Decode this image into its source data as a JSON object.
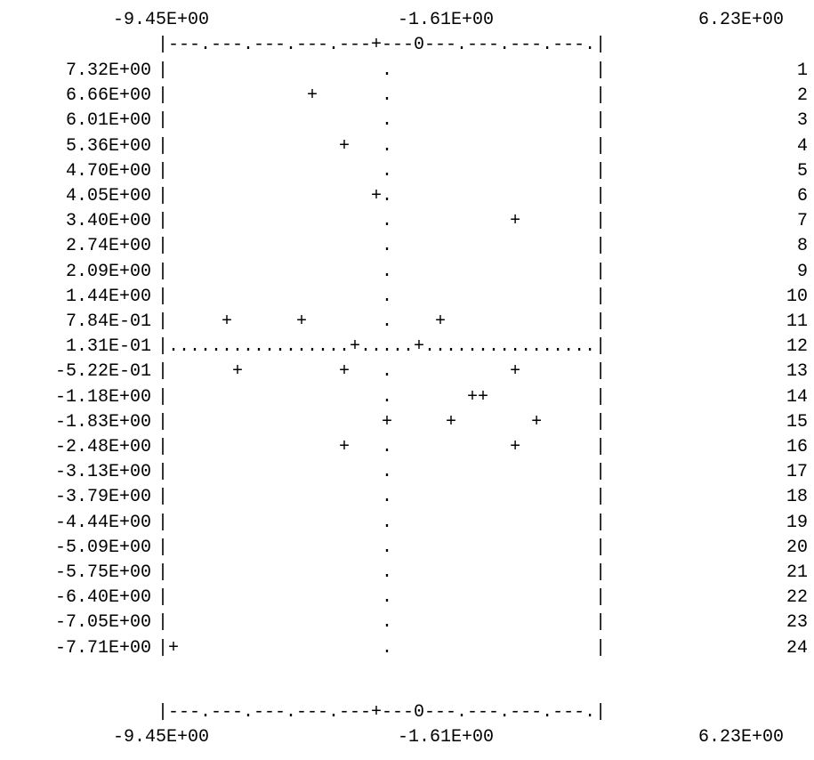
{
  "chart_data": {
    "type": "scatter",
    "style": "ascii line-printer plot",
    "title": "",
    "xlabel": "",
    "ylabel": "",
    "x_tick_labels": [
      "-9.45E+00",
      "-1.61E+00",
      "6.23E+00"
    ],
    "xlim": [
      -9.45,
      6.23
    ],
    "x_zero_marker": "0",
    "border_top": "|---.---.---.---.---+---0---.---.---.---.|",
    "border_bottom": "|---.---.---.---.---+---0---.---.---.---.|",
    "rows": [
      {
        "num": "1",
        "label": "7.32E+00",
        "plot": "|                    .                   |"
      },
      {
        "num": "2",
        "label": "6.66E+00",
        "plot": "|             +      .                   |"
      },
      {
        "num": "3",
        "label": "6.01E+00",
        "plot": "|                    .                   |"
      },
      {
        "num": "4",
        "label": "5.36E+00",
        "plot": "|                +   .                   |"
      },
      {
        "num": "5",
        "label": "4.70E+00",
        "plot": "|                    .                   |"
      },
      {
        "num": "6",
        "label": "4.05E+00",
        "plot": "|                   +.                   |"
      },
      {
        "num": "7",
        "label": "3.40E+00",
        "plot": "|                    .           +       |"
      },
      {
        "num": "8",
        "label": "2.74E+00",
        "plot": "|                    .                   |"
      },
      {
        "num": "9",
        "label": "2.09E+00",
        "plot": "|                    .                   |"
      },
      {
        "num": "10",
        "label": "1.44E+00",
        "plot": "|                    .                   |"
      },
      {
        "num": "11",
        "label": "7.84E-01",
        "plot": "|     +      +       .    +              |"
      },
      {
        "num": "12",
        "label": "1.31E-01",
        "plot": "|.................+.....+................|"
      },
      {
        "num": "13",
        "label": "-5.22E-01",
        "plot": "|      +         +   .           +       |"
      },
      {
        "num": "14",
        "label": "-1.18E+00",
        "plot": "|                    .       ++          |"
      },
      {
        "num": "15",
        "label": "-1.83E+00",
        "plot": "|                    +     +       +     |"
      },
      {
        "num": "16",
        "label": "-2.48E+00",
        "plot": "|                +   .           +       |"
      },
      {
        "num": "17",
        "label": "-3.13E+00",
        "plot": "|                    .                   |"
      },
      {
        "num": "18",
        "label": "-3.79E+00",
        "plot": "|                    .                   |"
      },
      {
        "num": "19",
        "label": "-4.44E+00",
        "plot": "|                    .                   |"
      },
      {
        "num": "20",
        "label": "-5.09E+00",
        "plot": "|                    .                   |"
      },
      {
        "num": "21",
        "label": "-5.75E+00",
        "plot": "|                    .                   |"
      },
      {
        "num": "22",
        "label": "-6.40E+00",
        "plot": "|                    .                   |"
      },
      {
        "num": "23",
        "label": "-7.05E+00",
        "plot": "|                    .                   |"
      },
      {
        "num": "24",
        "label": "-7.71E+00",
        "plot": "|+                   .                   |"
      }
    ],
    "points": [
      {
        "row": 2,
        "x": -4.2,
        "y": 6.66
      },
      {
        "row": 4,
        "x": -2.4,
        "y": 5.36
      },
      {
        "row": 6,
        "x": -2.0,
        "y": 4.05
      },
      {
        "row": 7,
        "x": 4.7,
        "y": 3.4
      },
      {
        "row": 11,
        "x": -6.6,
        "y": 0.784
      },
      {
        "row": 11,
        "x": -3.8,
        "y": 0.784
      },
      {
        "row": 11,
        "x": 2.0,
        "y": 0.784
      },
      {
        "row": 12,
        "x": -3.5,
        "y": 0.131
      },
      {
        "row": 12,
        "x": -0.3,
        "y": 0.131
      },
      {
        "row": 13,
        "x": -5.8,
        "y": -0.522
      },
      {
        "row": 13,
        "x": -2.1,
        "y": -0.522
      },
      {
        "row": 13,
        "x": 5.2,
        "y": -0.522
      },
      {
        "row": 14,
        "x": 3.3,
        "y": -1.18
      },
      {
        "row": 14,
        "x": 3.8,
        "y": -1.18
      },
      {
        "row": 15,
        "x": -1.2,
        "y": -1.83
      },
      {
        "row": 15,
        "x": 2.8,
        "y": -1.83
      },
      {
        "row": 15,
        "x": 5.6,
        "y": -1.83
      },
      {
        "row": 16,
        "x": -2.1,
        "y": -2.48
      },
      {
        "row": 16,
        "x": 4.7,
        "y": -2.48
      },
      {
        "row": 24,
        "x": -9.4,
        "y": -7.71
      }
    ]
  }
}
